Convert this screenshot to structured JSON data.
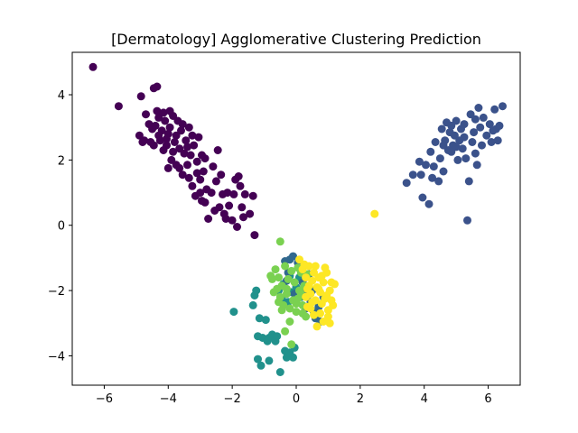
{
  "chart_data": {
    "type": "scatter",
    "title": "[Dermatology] Agglomerative Clustering Prediction",
    "xlabel": "",
    "ylabel": "",
    "xlim": [
      -7.0,
      7.0
    ],
    "ylim": [
      -4.9,
      5.3
    ],
    "xticks": [
      -6,
      -4,
      -2,
      0,
      2,
      4,
      6
    ],
    "yticks": [
      -4,
      -2,
      0,
      2,
      4
    ],
    "xtick_labels": [
      "−6",
      "−4",
      "−2",
      "0",
      "2",
      "4",
      "6"
    ],
    "ytick_labels": [
      "−4",
      "−2",
      "0",
      "2",
      "4"
    ],
    "grid": false,
    "legend": false,
    "series": [
      {
        "color": "#440154",
        "points": [
          [
            -6.35,
            4.85
          ],
          [
            -5.55,
            3.65
          ],
          [
            -4.9,
            2.75
          ],
          [
            -4.85,
            3.95
          ],
          [
            -4.75,
            2.6
          ],
          [
            -4.6,
            3.1
          ],
          [
            -4.5,
            2.95
          ],
          [
            -4.45,
            4.2
          ],
          [
            -4.35,
            4.25
          ],
          [
            -4.35,
            3.5
          ],
          [
            -4.3,
            3.3
          ],
          [
            -4.25,
            2.6
          ],
          [
            -4.2,
            2.9
          ],
          [
            -4.15,
            3.45
          ],
          [
            -4.1,
            3.2
          ],
          [
            -4.05,
            2.45
          ],
          [
            -4.0,
            2.8
          ],
          [
            -3.95,
            3.0
          ],
          [
            -3.9,
            2.0
          ],
          [
            -3.85,
            3.35
          ],
          [
            -3.8,
            2.55
          ],
          [
            -3.75,
            2.75
          ],
          [
            -3.7,
            3.2
          ],
          [
            -3.65,
            2.35
          ],
          [
            -3.6,
            2.9
          ],
          [
            -3.55,
            1.55
          ],
          [
            -3.5,
            2.2
          ],
          [
            -3.45,
            2.6
          ],
          [
            -3.4,
            1.85
          ],
          [
            -3.35,
            3.0
          ],
          [
            -3.3,
            2.15
          ],
          [
            -3.25,
            1.2
          ],
          [
            -3.2,
            2.45
          ],
          [
            -3.15,
            0.9
          ],
          [
            -3.1,
            1.95
          ],
          [
            -3.05,
            2.7
          ],
          [
            -3.0,
            1.4
          ],
          [
            -2.95,
            0.75
          ],
          [
            -2.9,
            1.65
          ],
          [
            -2.85,
            2.05
          ],
          [
            -2.8,
            1.1
          ],
          [
            -2.75,
            0.2
          ],
          [
            -2.6,
            1.8
          ],
          [
            -2.5,
            1.35
          ],
          [
            -2.45,
            2.3
          ],
          [
            -2.4,
            0.55
          ],
          [
            -2.3,
            0.95
          ],
          [
            -2.25,
            0.35
          ],
          [
            -2.15,
            1.0
          ],
          [
            -2.0,
            0.15
          ],
          [
            -1.95,
            0.95
          ],
          [
            -1.85,
            -0.05
          ],
          [
            -1.8,
            1.5
          ],
          [
            -1.75,
            1.2
          ],
          [
            -1.7,
            0.55
          ],
          [
            -1.65,
            0.25
          ],
          [
            -1.6,
            0.95
          ],
          [
            -1.45,
            0.35
          ],
          [
            -1.35,
            0.9
          ],
          [
            -1.3,
            -0.3
          ],
          [
            -4.8,
            2.55
          ],
          [
            -4.7,
            3.4
          ],
          [
            -4.55,
            2.55
          ],
          [
            -4.4,
            3.05
          ],
          [
            -4.15,
            2.3
          ],
          [
            -4.05,
            2.65
          ],
          [
            -3.95,
            3.5
          ],
          [
            -3.75,
            1.85
          ],
          [
            -3.55,
            3.1
          ],
          [
            -3.4,
            2.4
          ],
          [
            -3.25,
            2.75
          ],
          [
            -3.1,
            1.6
          ],
          [
            -2.95,
            2.15
          ],
          [
            -2.65,
            1.0
          ],
          [
            -2.35,
            1.55
          ],
          [
            -2.1,
            0.6
          ],
          [
            -1.9,
            1.4
          ],
          [
            -2.55,
            0.45
          ],
          [
            -4.3,
            2.75
          ],
          [
            -3.85,
            2.25
          ],
          [
            -3.65,
            1.75
          ],
          [
            -3.35,
            1.45
          ],
          [
            -4.0,
            1.75
          ],
          [
            -4.45,
            2.45
          ],
          [
            -3.0,
            1.0
          ],
          [
            -2.85,
            0.7
          ],
          [
            -2.2,
            0.2
          ]
        ]
      },
      {
        "color": "#3b528b",
        "points": [
          [
            3.45,
            1.3
          ],
          [
            3.65,
            1.55
          ],
          [
            3.85,
            1.95
          ],
          [
            3.9,
            1.55
          ],
          [
            3.95,
            0.85
          ],
          [
            4.05,
            1.85
          ],
          [
            4.15,
            0.65
          ],
          [
            4.2,
            2.25
          ],
          [
            4.25,
            1.45
          ],
          [
            4.3,
            1.8
          ],
          [
            4.35,
            2.55
          ],
          [
            4.45,
            1.35
          ],
          [
            4.5,
            2.05
          ],
          [
            4.55,
            2.95
          ],
          [
            4.6,
            1.65
          ],
          [
            4.65,
            2.6
          ],
          [
            4.7,
            3.15
          ],
          [
            4.75,
            2.3
          ],
          [
            4.8,
            2.85
          ],
          [
            4.85,
            3.05
          ],
          [
            4.9,
            2.45
          ],
          [
            4.95,
            2.75
          ],
          [
            5.0,
            3.2
          ],
          [
            5.05,
            2.0
          ],
          [
            5.1,
            2.6
          ],
          [
            5.15,
            2.95
          ],
          [
            5.2,
            2.35
          ],
          [
            5.25,
            3.1
          ],
          [
            5.3,
            2.05
          ],
          [
            5.35,
            0.15
          ],
          [
            5.4,
            1.35
          ],
          [
            5.45,
            3.4
          ],
          [
            5.5,
            2.55
          ],
          [
            5.55,
            2.85
          ],
          [
            5.6,
            3.25
          ],
          [
            5.65,
            1.85
          ],
          [
            5.7,
            3.6
          ],
          [
            5.75,
            3.0
          ],
          [
            5.8,
            2.45
          ],
          [
            5.85,
            3.3
          ],
          [
            5.95,
            2.75
          ],
          [
            6.05,
            3.1
          ],
          [
            6.1,
            2.55
          ],
          [
            6.2,
            3.55
          ],
          [
            6.25,
            2.95
          ],
          [
            6.3,
            2.6
          ],
          [
            6.35,
            3.05
          ],
          [
            6.45,
            3.65
          ],
          [
            4.85,
            2.25
          ],
          [
            5.25,
            2.7
          ],
          [
            5.6,
            2.2
          ],
          [
            4.6,
            2.45
          ],
          [
            6.15,
            2.9
          ],
          [
            5.0,
            2.4
          ]
        ]
      },
      {
        "color": "#21918c",
        "points": [
          [
            -1.25,
            -2.0
          ],
          [
            -1.3,
            -2.15
          ],
          [
            -1.35,
            -2.45
          ],
          [
            -1.15,
            -2.85
          ],
          [
            -1.05,
            -3.45
          ],
          [
            -0.95,
            -2.9
          ],
          [
            -0.9,
            -3.55
          ],
          [
            -1.2,
            -3.4
          ],
          [
            -0.85,
            -3.45
          ],
          [
            -0.75,
            -3.35
          ],
          [
            -0.65,
            -3.55
          ],
          [
            -0.6,
            -3.4
          ],
          [
            -1.1,
            -4.3
          ],
          [
            -1.2,
            -4.1
          ],
          [
            -0.85,
            -4.15
          ],
          [
            -0.5,
            -4.5
          ],
          [
            -0.35,
            -3.85
          ],
          [
            -0.3,
            -4.05
          ],
          [
            -0.1,
            -4.05
          ],
          [
            -0.2,
            -3.9
          ],
          [
            -0.55,
            -2.0
          ],
          [
            -0.4,
            -1.8
          ],
          [
            -0.2,
            -1.55
          ],
          [
            -0.15,
            -2.05
          ],
          [
            0.0,
            -1.9
          ],
          [
            0.15,
            -2.2
          ],
          [
            0.1,
            -1.6
          ],
          [
            -1.95,
            -2.65
          ],
          [
            -0.05,
            -3.75
          ],
          [
            -0.45,
            -2.25
          ],
          [
            -0.25,
            -2.35
          ]
        ]
      },
      {
        "color": "#31688e",
        "points": [
          [
            -0.35,
            -1.1
          ],
          [
            -0.25,
            -1.45
          ],
          [
            -0.2,
            -1.05
          ],
          [
            -0.1,
            -0.95
          ],
          [
            -0.3,
            -1.7
          ],
          [
            0.05,
            -1.15
          ],
          [
            0.2,
            -1.75
          ],
          [
            0.25,
            -2.05
          ],
          [
            0.3,
            -2.55
          ],
          [
            0.45,
            -2.35
          ],
          [
            0.55,
            -2.65
          ],
          [
            0.6,
            -2.85
          ],
          [
            0.75,
            -2.95
          ],
          [
            0.7,
            -2.5
          ],
          [
            0.85,
            -2.2
          ],
          [
            0.4,
            -1.5
          ],
          [
            0.5,
            -2.0
          ],
          [
            -0.05,
            -2.1
          ]
        ]
      },
      {
        "color": "#7ad151",
        "points": [
          [
            -0.5,
            -0.5
          ],
          [
            -0.75,
            -1.65
          ],
          [
            -0.7,
            -2.05
          ],
          [
            -0.65,
            -1.35
          ],
          [
            -0.55,
            -1.6
          ],
          [
            -0.5,
            -2.2
          ],
          [
            -0.45,
            -1.85
          ],
          [
            -0.4,
            -2.45
          ],
          [
            -0.35,
            -1.25
          ],
          [
            -0.3,
            -2.1
          ],
          [
            -0.25,
            -1.65
          ],
          [
            -0.2,
            -2.55
          ],
          [
            -0.15,
            -1.4
          ],
          [
            -0.1,
            -2.3
          ],
          [
            -0.05,
            -1.75
          ],
          [
            0.0,
            -2.65
          ],
          [
            0.05,
            -1.3
          ],
          [
            0.1,
            -2.0
          ],
          [
            0.15,
            -1.45
          ],
          [
            0.2,
            -2.45
          ],
          [
            0.25,
            -1.85
          ],
          [
            0.3,
            -2.8
          ],
          [
            0.35,
            -1.5
          ],
          [
            -0.35,
            -3.25
          ],
          [
            -0.15,
            -3.65
          ],
          [
            -0.2,
            -2.95
          ],
          [
            -0.45,
            -2.6
          ],
          [
            -0.55,
            -2.35
          ],
          [
            0.05,
            -2.25
          ],
          [
            0.15,
            -2.1
          ],
          [
            -0.6,
            -1.95
          ],
          [
            -0.8,
            -1.55
          ],
          [
            0.0,
            -2.4
          ],
          [
            0.2,
            -2.7
          ],
          [
            -0.3,
            -1.95
          ]
        ]
      },
      {
        "color": "#fde725",
        "points": [
          [
            2.45,
            0.35
          ],
          [
            0.1,
            -1.05
          ],
          [
            0.2,
            -1.35
          ],
          [
            0.3,
            -1.6
          ],
          [
            0.35,
            -1.95
          ],
          [
            0.4,
            -1.25
          ],
          [
            0.45,
            -2.1
          ],
          [
            0.5,
            -1.7
          ],
          [
            0.55,
            -1.45
          ],
          [
            0.6,
            -2.3
          ],
          [
            0.65,
            -1.9
          ],
          [
            0.7,
            -1.6
          ],
          [
            0.75,
            -2.05
          ],
          [
            0.8,
            -2.4
          ],
          [
            0.85,
            -1.75
          ],
          [
            0.9,
            -2.25
          ],
          [
            0.95,
            -1.45
          ],
          [
            1.0,
            -2.6
          ],
          [
            1.05,
            -2.0
          ],
          [
            1.1,
            -1.75
          ],
          [
            1.15,
            -2.45
          ],
          [
            1.2,
            -1.8
          ],
          [
            1.05,
            -3.0
          ],
          [
            0.55,
            -2.75
          ],
          [
            0.65,
            -3.1
          ],
          [
            0.45,
            -2.55
          ],
          [
            0.75,
            -2.7
          ],
          [
            0.9,
            -1.3
          ],
          [
            1.0,
            -2.8
          ],
          [
            0.35,
            -2.5
          ],
          [
            0.6,
            -1.25
          ],
          [
            0.85,
            -2.95
          ],
          [
            0.25,
            -1.2
          ],
          [
            0.5,
            -2.35
          ],
          [
            0.7,
            -1.95
          ],
          [
            0.95,
            -2.15
          ],
          [
            0.4,
            -1.85
          ],
          [
            0.8,
            -1.55
          ],
          [
            1.1,
            -2.3
          ],
          [
            0.3,
            -2.2
          ]
        ]
      }
    ]
  }
}
